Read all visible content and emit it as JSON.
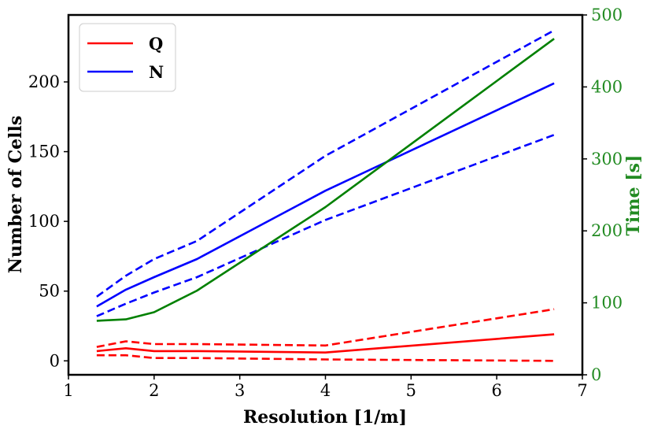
{
  "chart_data": {
    "type": "line",
    "title": "",
    "xlabel": "Resolution [1/m]",
    "ylabel": "Number of Cells",
    "y2label": "Time [s]",
    "xlim": [
      1,
      7
    ],
    "ylim": [
      -10,
      248
    ],
    "y2lim": [
      0,
      500
    ],
    "xticks": [
      1,
      2,
      3,
      4,
      5,
      6,
      7
    ],
    "yticks": [
      0,
      50,
      100,
      150,
      200
    ],
    "y2ticks": [
      0,
      100,
      200,
      300,
      400,
      500
    ],
    "x": [
      1.33,
      1.67,
      2.0,
      2.5,
      4.0,
      6.67
    ],
    "series": [
      {
        "name": "Q",
        "axis": "left",
        "color": "#ff0000",
        "style": "solid",
        "values": [
          7,
          9,
          7,
          7,
          6,
          19
        ]
      },
      {
        "name": "Q upper",
        "axis": "left",
        "color": "#ff0000",
        "style": "dashed",
        "values": [
          10,
          14,
          12,
          12,
          11,
          37
        ]
      },
      {
        "name": "Q lower",
        "axis": "left",
        "color": "#ff0000",
        "style": "dashed",
        "values": [
          4,
          4,
          2,
          2,
          1,
          0
        ]
      },
      {
        "name": "N",
        "axis": "left",
        "color": "#0000ff",
        "style": "solid",
        "values": [
          39,
          51,
          60,
          73,
          122,
          199
        ]
      },
      {
        "name": "N upper",
        "axis": "left",
        "color": "#0000ff",
        "style": "dashed",
        "values": [
          46,
          61,
          73,
          86,
          147,
          237
        ]
      },
      {
        "name": "N lower",
        "axis": "left",
        "color": "#0000ff",
        "style": "dashed",
        "values": [
          32,
          41,
          49,
          60,
          101,
          162
        ]
      },
      {
        "name": "Time",
        "axis": "right",
        "color": "#008000",
        "style": "solid",
        "values": [
          75,
          77,
          87,
          117,
          233,
          467
        ]
      }
    ],
    "legend": {
      "position": "top-left",
      "entries": [
        {
          "label": "Q",
          "color": "#ff0000"
        },
        {
          "label": "N",
          "color": "#0000ff"
        }
      ]
    },
    "right_axis_color": "#228b22",
    "grid": false
  }
}
